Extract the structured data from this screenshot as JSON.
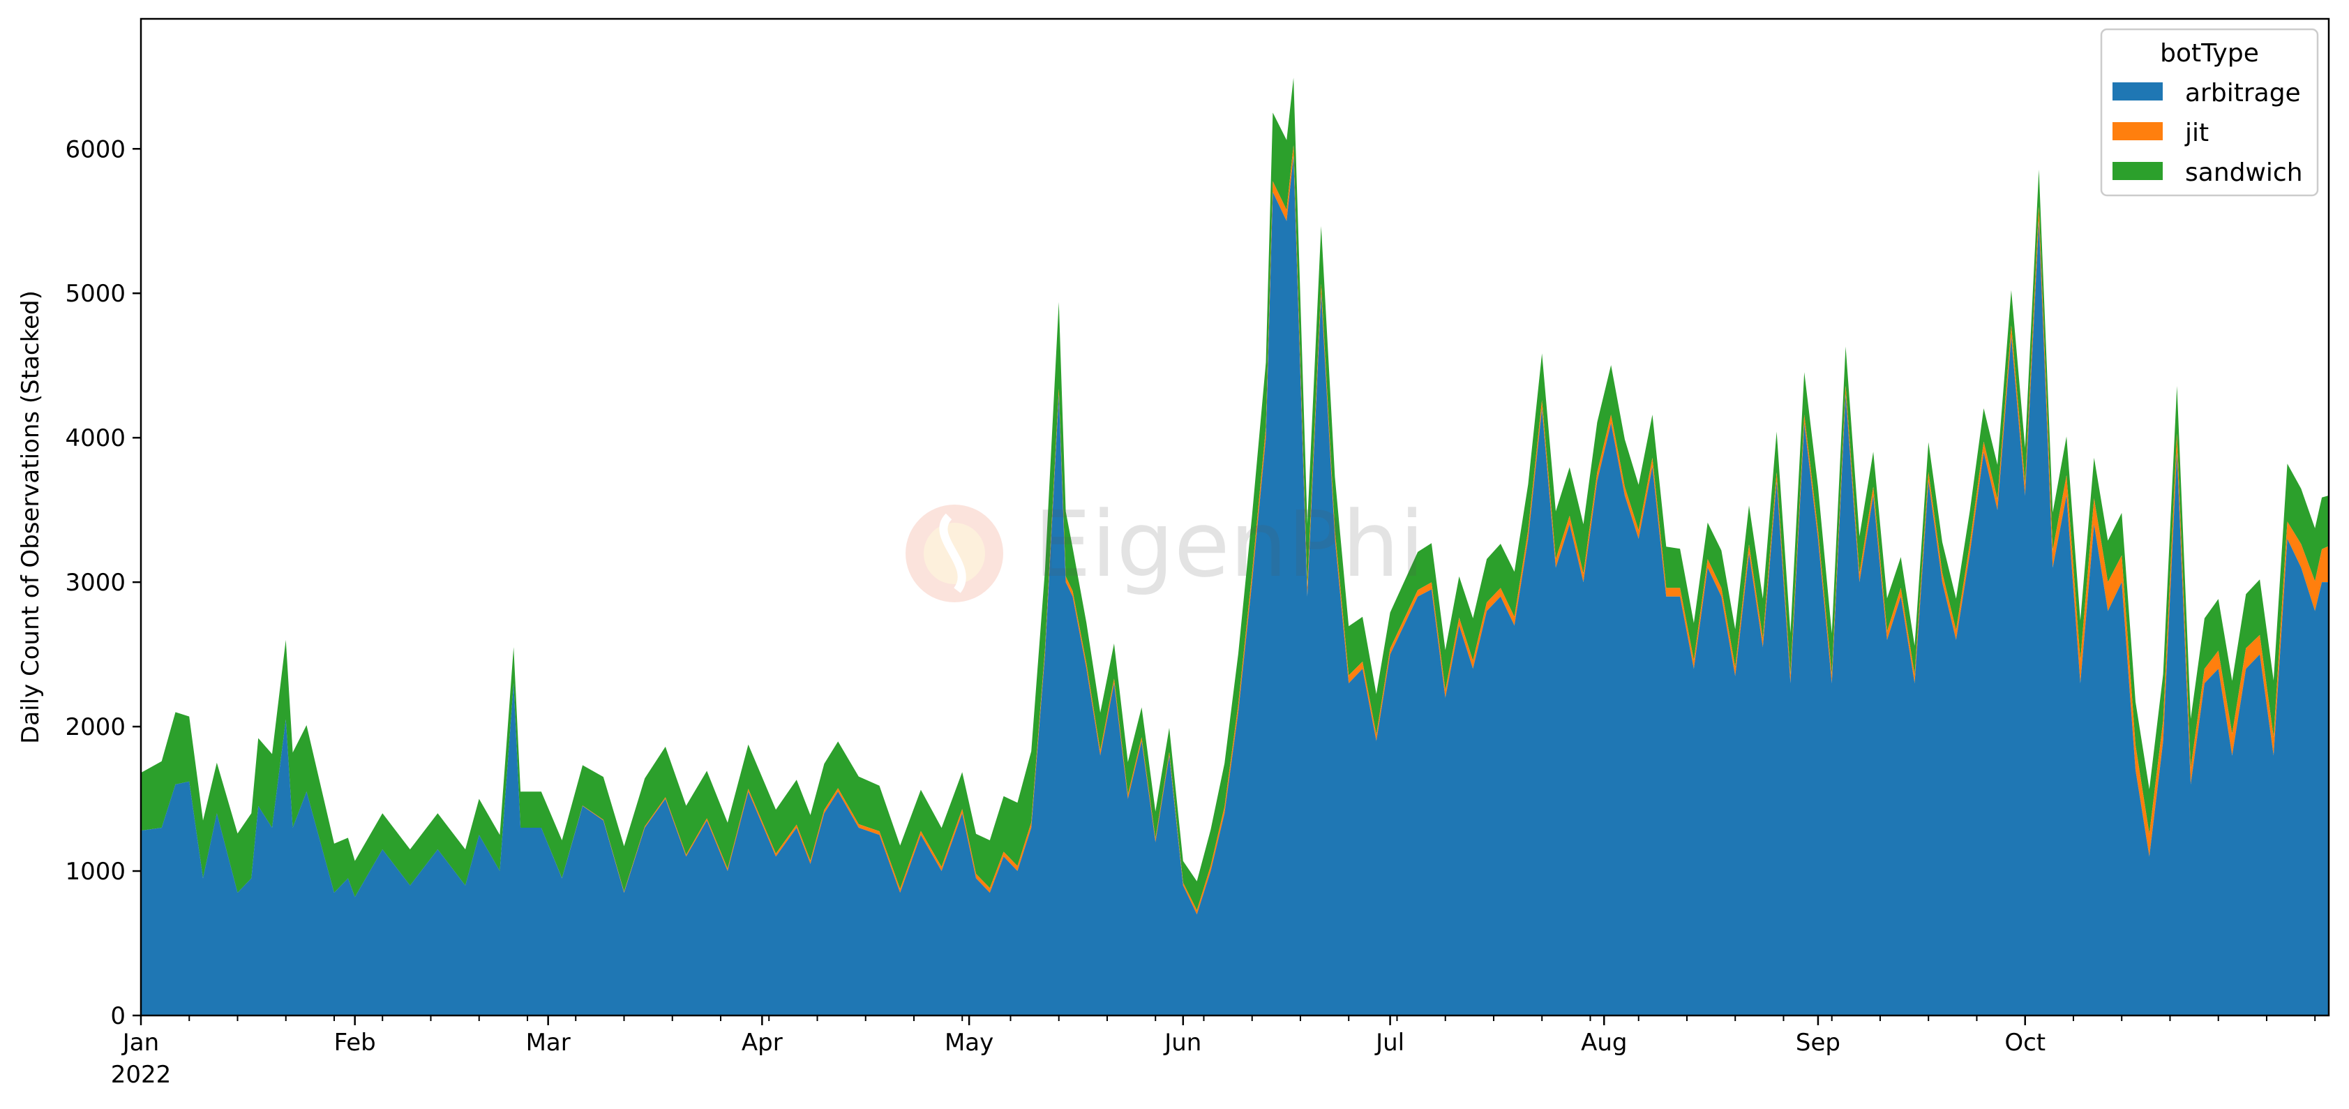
{
  "chart_data": {
    "type": "area",
    "stacked": true,
    "title": "",
    "xlabel": "",
    "ylabel": "Daily Count of Observations (Stacked)",
    "ylim": [
      0,
      6900
    ],
    "yticks": [
      0,
      1000,
      2000,
      3000,
      4000,
      5000,
      6000
    ],
    "xlim": [
      "2022-01-01",
      "2022-10-31"
    ],
    "xticks": [
      {
        "date": "2022-01-01",
        "label": "Jan",
        "sublabel": "2022"
      },
      {
        "date": "2022-02-01",
        "label": "Feb"
      },
      {
        "date": "2022-03-01",
        "label": "Mar"
      },
      {
        "date": "2022-04-01",
        "label": "Apr"
      },
      {
        "date": "2022-05-01",
        "label": "May"
      },
      {
        "date": "2022-06-01",
        "label": "Jun"
      },
      {
        "date": "2022-07-01",
        "label": "Jul"
      },
      {
        "date": "2022-08-01",
        "label": "Aug"
      },
      {
        "date": "2022-09-01",
        "label": "Sep"
      },
      {
        "date": "2022-10-01",
        "label": "Oct"
      }
    ],
    "grid": false,
    "legend": {
      "title": "botType",
      "position": "top-right"
    },
    "series": [
      {
        "name": "arbitrage",
        "color": "#1f77b4",
        "points": [
          [
            "2022-01-01",
            1280
          ],
          [
            "2022-01-04",
            1300
          ],
          [
            "2022-01-06",
            1600
          ],
          [
            "2022-01-08",
            1620
          ],
          [
            "2022-01-10",
            950
          ],
          [
            "2022-01-12",
            1400
          ],
          [
            "2022-01-15",
            850
          ],
          [
            "2022-01-17",
            950
          ],
          [
            "2022-01-18",
            1450
          ],
          [
            "2022-01-20",
            1300
          ],
          [
            "2022-01-22",
            2050
          ],
          [
            "2022-01-23",
            1300
          ],
          [
            "2022-01-25",
            1550
          ],
          [
            "2022-01-29",
            850
          ],
          [
            "2022-01-31",
            950
          ],
          [
            "2022-02-01",
            820
          ],
          [
            "2022-02-05",
            1150
          ],
          [
            "2022-02-09",
            900
          ],
          [
            "2022-02-13",
            1150
          ],
          [
            "2022-02-17",
            900
          ],
          [
            "2022-02-19",
            1250
          ],
          [
            "2022-02-22",
            1000
          ],
          [
            "2022-02-24",
            2300
          ],
          [
            "2022-02-25",
            1300
          ],
          [
            "2022-02-28",
            1300
          ],
          [
            "2022-03-03",
            950
          ],
          [
            "2022-03-06",
            1450
          ],
          [
            "2022-03-09",
            1350
          ],
          [
            "2022-03-12",
            850
          ],
          [
            "2022-03-15",
            1300
          ],
          [
            "2022-03-18",
            1500
          ],
          [
            "2022-03-21",
            1100
          ],
          [
            "2022-03-24",
            1350
          ],
          [
            "2022-03-27",
            1000
          ],
          [
            "2022-03-30",
            1550
          ],
          [
            "2022-04-03",
            1100
          ],
          [
            "2022-04-06",
            1300
          ],
          [
            "2022-04-08",
            1050
          ],
          [
            "2022-04-10",
            1400
          ],
          [
            "2022-04-12",
            1550
          ],
          [
            "2022-04-15",
            1300
          ],
          [
            "2022-04-18",
            1250
          ],
          [
            "2022-04-21",
            850
          ],
          [
            "2022-04-24",
            1250
          ],
          [
            "2022-04-27",
            1000
          ],
          [
            "2022-04-30",
            1400
          ],
          [
            "2022-05-02",
            950
          ],
          [
            "2022-05-04",
            850
          ],
          [
            "2022-05-06",
            1100
          ],
          [
            "2022-05-08",
            1000
          ],
          [
            "2022-05-10",
            1300
          ],
          [
            "2022-05-12",
            2500
          ],
          [
            "2022-05-14",
            4300
          ],
          [
            "2022-05-15",
            3000
          ],
          [
            "2022-05-16",
            2900
          ],
          [
            "2022-05-18",
            2400
          ],
          [
            "2022-05-20",
            1800
          ],
          [
            "2022-05-22",
            2300
          ],
          [
            "2022-05-24",
            1500
          ],
          [
            "2022-05-26",
            1900
          ],
          [
            "2022-05-28",
            1200
          ],
          [
            "2022-05-30",
            1800
          ],
          [
            "2022-06-01",
            900
          ],
          [
            "2022-06-03",
            700
          ],
          [
            "2022-06-05",
            1000
          ],
          [
            "2022-06-07",
            1400
          ],
          [
            "2022-06-09",
            2100
          ],
          [
            "2022-06-11",
            3000
          ],
          [
            "2022-06-13",
            4000
          ],
          [
            "2022-06-14",
            5700
          ],
          [
            "2022-06-16",
            5500
          ],
          [
            "2022-06-17",
            5950
          ],
          [
            "2022-06-19",
            2900
          ],
          [
            "2022-06-21",
            5000
          ],
          [
            "2022-06-23",
            3300
          ],
          [
            "2022-06-25",
            2300
          ],
          [
            "2022-06-27",
            2400
          ],
          [
            "2022-06-29",
            1900
          ],
          [
            "2022-07-01",
            2500
          ],
          [
            "2022-07-03",
            2700
          ],
          [
            "2022-07-05",
            2900
          ],
          [
            "2022-07-07",
            2950
          ],
          [
            "2022-07-09",
            2200
          ],
          [
            "2022-07-11",
            2700
          ],
          [
            "2022-07-13",
            2400
          ],
          [
            "2022-07-15",
            2800
          ],
          [
            "2022-07-17",
            2900
          ],
          [
            "2022-07-19",
            2700
          ],
          [
            "2022-07-21",
            3300
          ],
          [
            "2022-07-23",
            4200
          ],
          [
            "2022-07-25",
            3100
          ],
          [
            "2022-07-27",
            3400
          ],
          [
            "2022-07-29",
            3000
          ],
          [
            "2022-07-31",
            3700
          ],
          [
            "2022-08-02",
            4100
          ],
          [
            "2022-08-04",
            3600
          ],
          [
            "2022-08-06",
            3300
          ],
          [
            "2022-08-08",
            3800
          ],
          [
            "2022-08-10",
            2900
          ],
          [
            "2022-08-12",
            2900
          ],
          [
            "2022-08-14",
            2400
          ],
          [
            "2022-08-16",
            3100
          ],
          [
            "2022-08-18",
            2900
          ],
          [
            "2022-08-20",
            2350
          ],
          [
            "2022-08-22",
            3200
          ],
          [
            "2022-08-24",
            2550
          ],
          [
            "2022-08-26",
            3700
          ],
          [
            "2022-08-28",
            2300
          ],
          [
            "2022-08-30",
            4100
          ],
          [
            "2022-09-01",
            3300
          ],
          [
            "2022-09-03",
            2300
          ],
          [
            "2022-09-05",
            4300
          ],
          [
            "2022-09-07",
            3000
          ],
          [
            "2022-09-09",
            3600
          ],
          [
            "2022-09-11",
            2600
          ],
          [
            "2022-09-13",
            2900
          ],
          [
            "2022-09-15",
            2300
          ],
          [
            "2022-09-17",
            3700
          ],
          [
            "2022-09-19",
            3000
          ],
          [
            "2022-09-21",
            2600
          ],
          [
            "2022-09-23",
            3200
          ],
          [
            "2022-09-25",
            3900
          ],
          [
            "2022-09-27",
            3500
          ],
          [
            "2022-09-29",
            4700
          ],
          [
            "2022-10-01",
            3600
          ],
          [
            "2022-10-03",
            5500
          ],
          [
            "2022-10-05",
            3100
          ],
          [
            "2022-10-07",
            3600
          ],
          [
            "2022-10-09",
            2300
          ],
          [
            "2022-10-11",
            3400
          ],
          [
            "2022-10-13",
            2800
          ],
          [
            "2022-10-15",
            3000
          ],
          [
            "2022-10-17",
            1700
          ],
          [
            "2022-10-19",
            1100
          ],
          [
            "2022-10-21",
            1900
          ],
          [
            "2022-10-23",
            3900
          ],
          [
            "2022-10-25",
            1600
          ],
          [
            "2022-10-27",
            2300
          ],
          [
            "2022-10-29",
            2400
          ],
          [
            "2022-10-31",
            1800
          ],
          [
            "2022-11-02",
            2400
          ],
          [
            "2022-11-04",
            2500
          ],
          [
            "2022-11-06",
            1800
          ],
          [
            "2022-11-08",
            3300
          ],
          [
            "2022-11-10",
            3100
          ],
          [
            "2022-11-12",
            2800
          ],
          [
            "2022-11-13",
            3000
          ],
          [
            "2022-11-14",
            3000
          ]
        ]
      },
      {
        "name": "jit",
        "color": "#ff7f0e",
        "points": [
          [
            "2022-01-01",
            0
          ],
          [
            "2022-03-01",
            0
          ],
          [
            "2022-04-01",
            20
          ],
          [
            "2022-05-01",
            30
          ],
          [
            "2022-05-15",
            40
          ],
          [
            "2022-06-01",
            20
          ],
          [
            "2022-06-15",
            80
          ],
          [
            "2022-07-01",
            40
          ],
          [
            "2022-07-15",
            60
          ],
          [
            "2022-08-01",
            60
          ],
          [
            "2022-08-15",
            60
          ],
          [
            "2022-09-01",
            60
          ],
          [
            "2022-09-15",
            60
          ],
          [
            "2022-10-01",
            80
          ],
          [
            "2022-10-13",
            200
          ],
          [
            "2022-10-27",
            100
          ],
          [
            "2022-10-31",
            150
          ],
          [
            "2022-11-08",
            120
          ],
          [
            "2022-11-14",
            250
          ]
        ]
      },
      {
        "name": "sandwich",
        "color": "#2ca02c",
        "points": [
          [
            "2022-01-01",
            400
          ],
          [
            "2022-01-06",
            500
          ],
          [
            "2022-01-12",
            350
          ],
          [
            "2022-01-22",
            550
          ],
          [
            "2022-02-01",
            250
          ],
          [
            "2022-03-01",
            250
          ],
          [
            "2022-03-18",
            350
          ],
          [
            "2022-04-01",
            300
          ],
          [
            "2022-04-15",
            330
          ],
          [
            "2022-05-01",
            250
          ],
          [
            "2022-05-14",
            600
          ],
          [
            "2022-05-16",
            300
          ],
          [
            "2022-06-01",
            150
          ],
          [
            "2022-06-15",
            500
          ],
          [
            "2022-06-21",
            400
          ],
          [
            "2022-07-01",
            250
          ],
          [
            "2022-07-15",
            300
          ],
          [
            "2022-08-01",
            350
          ],
          [
            "2022-08-15",
            250
          ],
          [
            "2022-09-01",
            300
          ],
          [
            "2022-09-15",
            200
          ],
          [
            "2022-10-01",
            250
          ],
          [
            "2022-10-17",
            300
          ],
          [
            "2022-10-27",
            350
          ],
          [
            "2022-11-08",
            400
          ],
          [
            "2022-11-14",
            350
          ]
        ]
      }
    ]
  },
  "watermark": {
    "text": "EigenPhi"
  }
}
